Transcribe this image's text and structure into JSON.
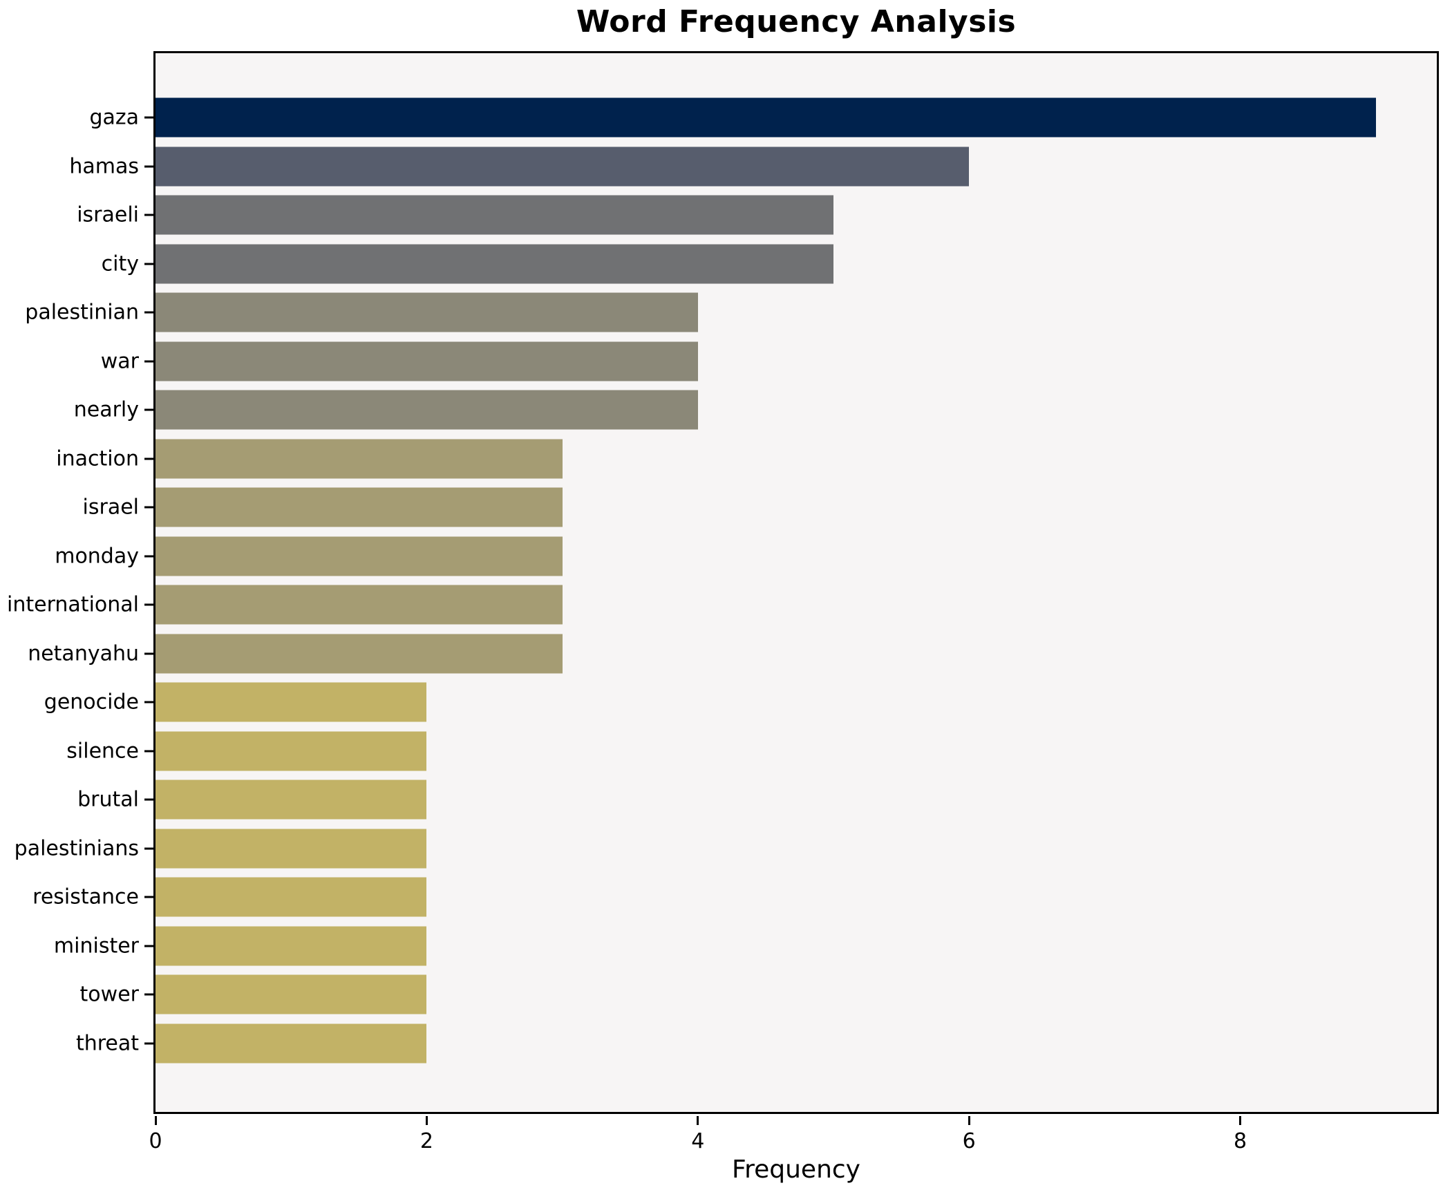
{
  "chart_data": {
    "type": "bar",
    "orientation": "horizontal",
    "title": "Word Frequency Analysis",
    "xlabel": "Frequency",
    "ylabel": "",
    "categories": [
      "gaza",
      "hamas",
      "israeli",
      "city",
      "palestinian",
      "war",
      "nearly",
      "inaction",
      "israel",
      "monday",
      "international",
      "netanyahu",
      "genocide",
      "silence",
      "brutal",
      "palestinians",
      "resistance",
      "minister",
      "tower",
      "threat"
    ],
    "values": [
      9,
      6,
      5,
      5,
      4,
      4,
      4,
      3,
      3,
      3,
      3,
      3,
      2,
      2,
      2,
      2,
      2,
      2,
      2,
      2
    ],
    "bar_colors": [
      "#00224d",
      "#575d6d",
      "#707173",
      "#707173",
      "#8b8878",
      "#8b8878",
      "#8b8878",
      "#a59c73",
      "#a59c73",
      "#a59c73",
      "#a59c73",
      "#a59c73",
      "#c2b266",
      "#c2b266",
      "#c2b266",
      "#c2b266",
      "#c2b266",
      "#c2b266",
      "#c2b266",
      "#c2b266"
    ],
    "xlim": [
      0,
      9.45
    ],
    "xticks": [
      0,
      2,
      4,
      6,
      8
    ],
    "grid": false,
    "legend_position": "none",
    "plot_background": "#f7f5f5",
    "page_background": "#ffffff",
    "axis_color": "#000000"
  }
}
